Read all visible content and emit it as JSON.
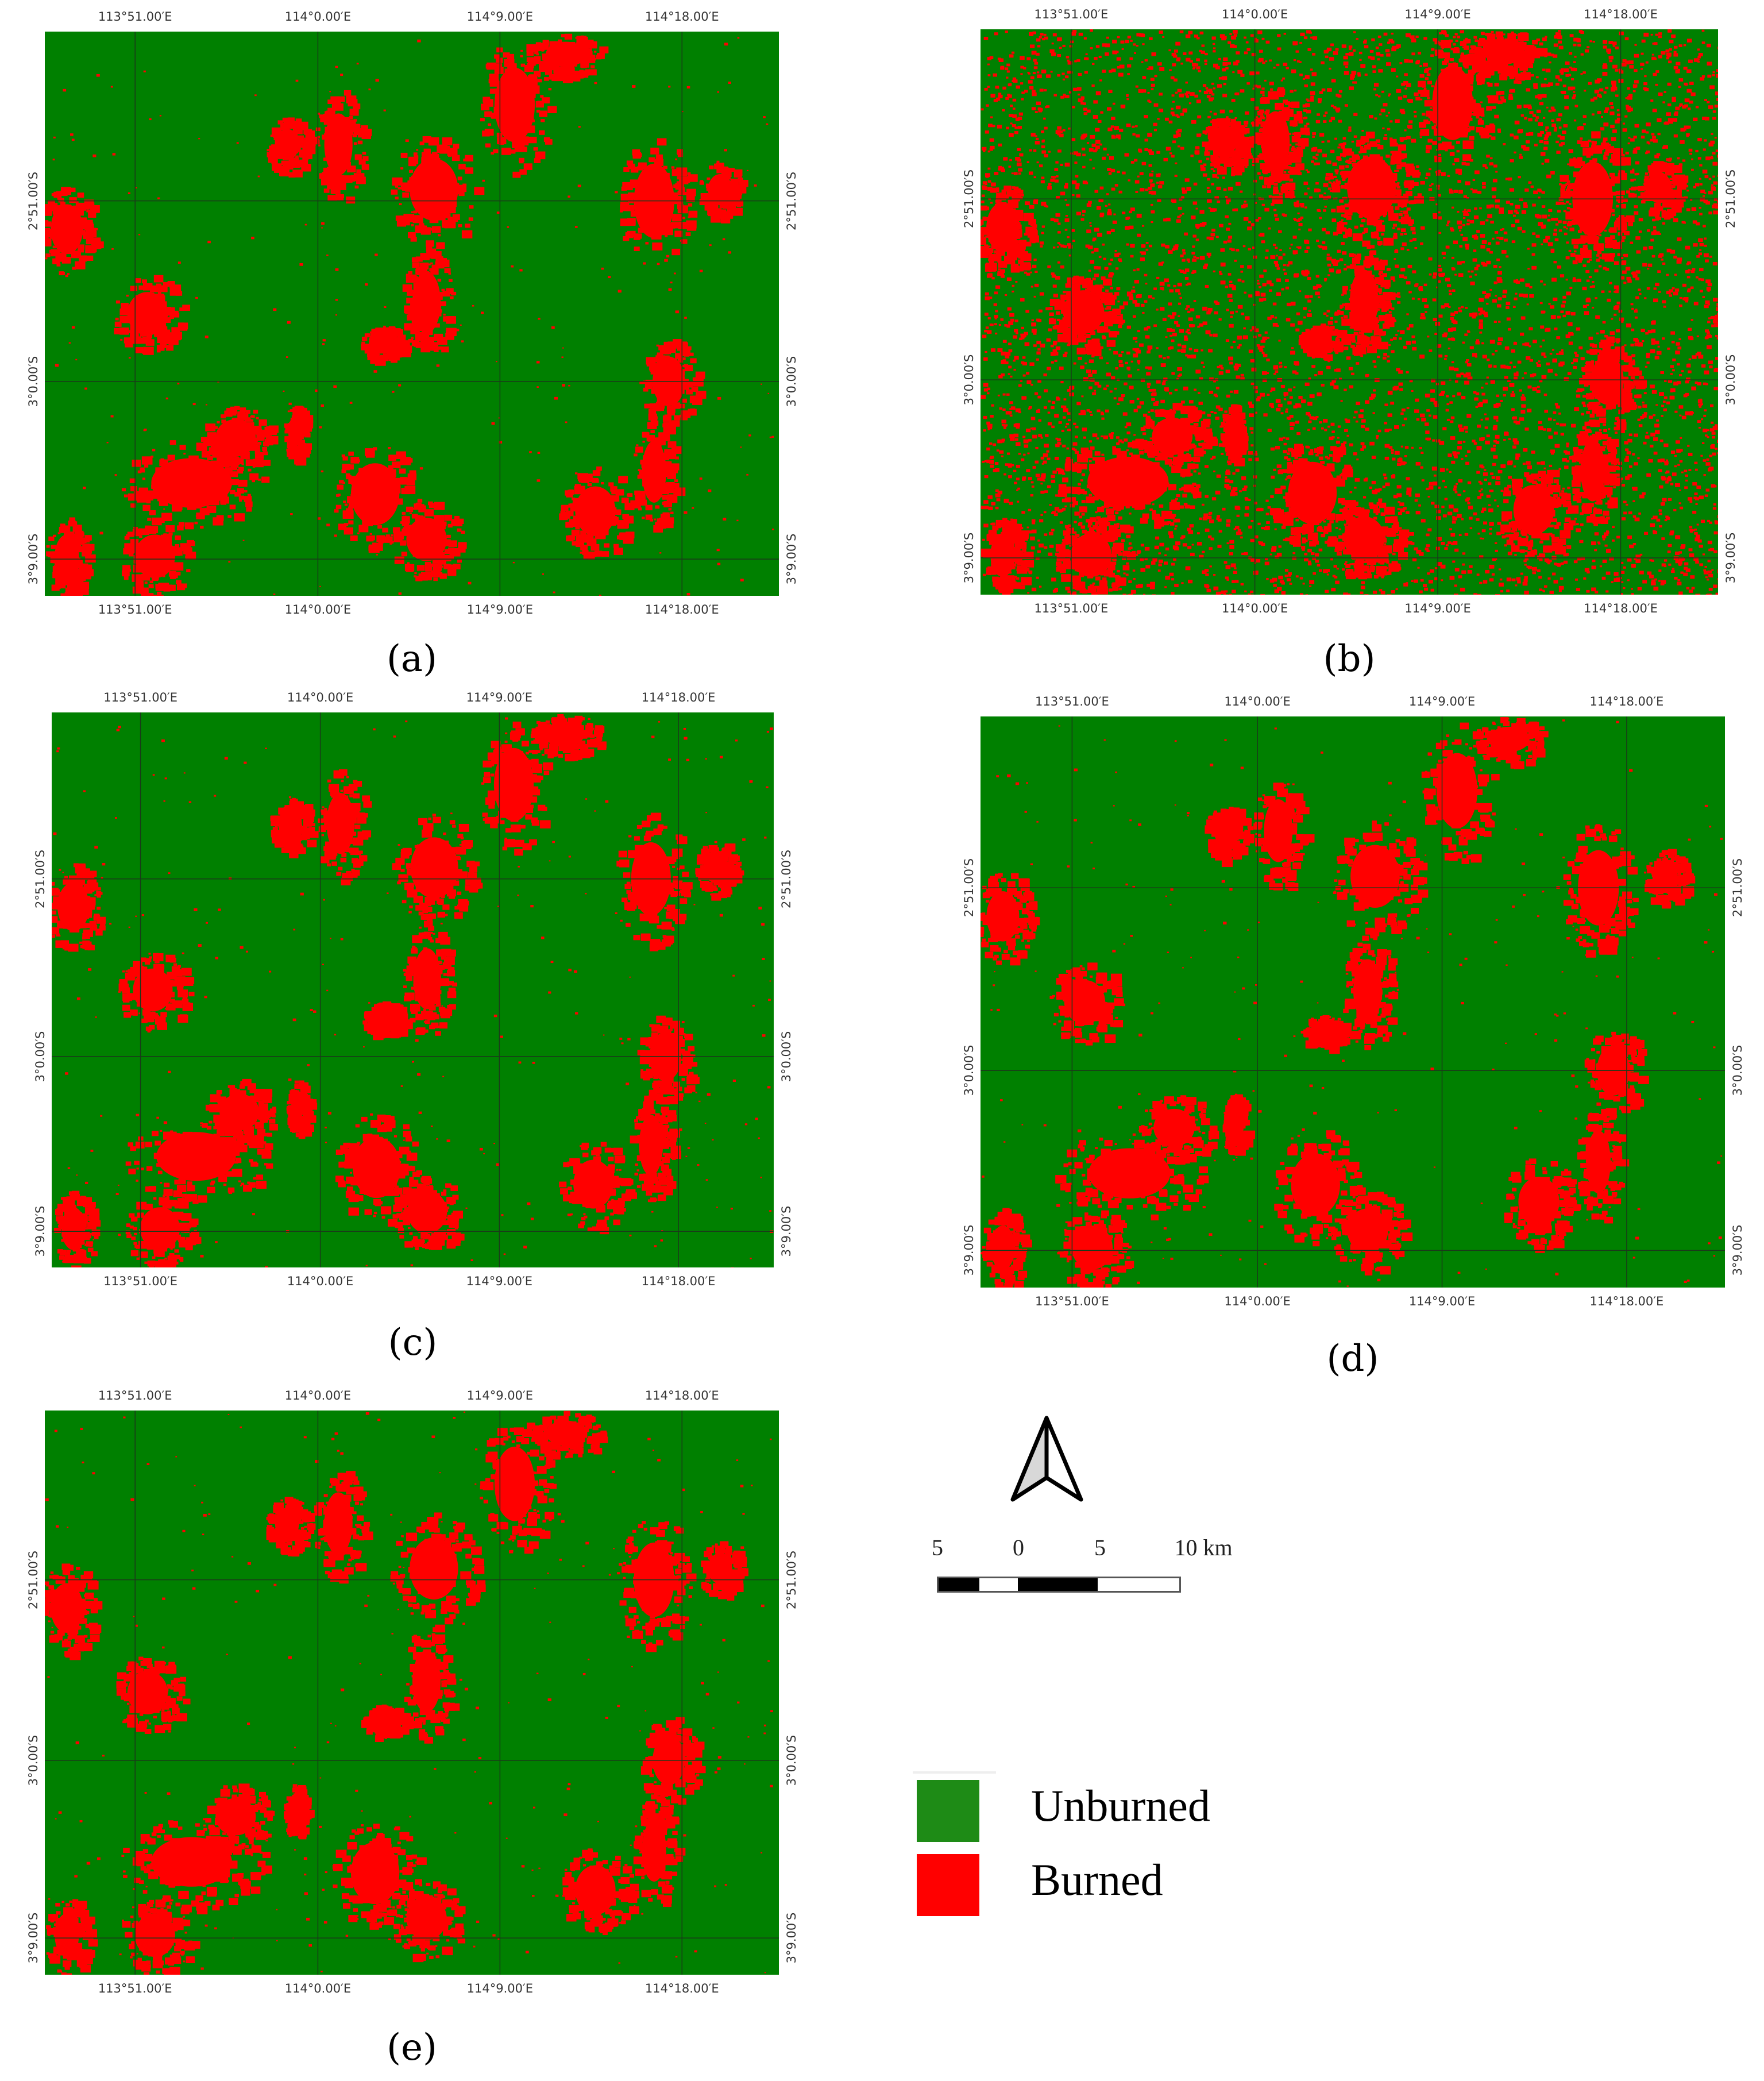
{
  "figure": {
    "panels": [
      {
        "id": "a",
        "caption": "(a)",
        "noisy": false
      },
      {
        "id": "b",
        "caption": "(b)",
        "noisy": true
      },
      {
        "id": "c",
        "caption": "(c)",
        "noisy": false
      },
      {
        "id": "d",
        "caption": "(d)",
        "noisy": false
      },
      {
        "id": "e",
        "caption": "(e)",
        "noisy": false
      }
    ],
    "longitude_labels": [
      "113°51.00′E",
      "114°0.00′E",
      "114°9.00′E",
      "114°18.00′E"
    ],
    "latitude_labels": [
      "2°51.00′S",
      "3°0.00′S",
      "3°9.00′S"
    ]
  },
  "scale_bar": {
    "labels": [
      "5",
      "0",
      "5",
      "10 km"
    ]
  },
  "north_arrow": {
    "icon": "north-arrow-icon"
  },
  "legend": {
    "items": [
      {
        "label": "Unburned",
        "color": "#1e8b16"
      },
      {
        "label": "Burned",
        "color": "#ff0000"
      }
    ]
  },
  "colors": {
    "unburned_map": "#008000",
    "burned_map": "#ff0000",
    "grid": "#1a3a1a"
  }
}
